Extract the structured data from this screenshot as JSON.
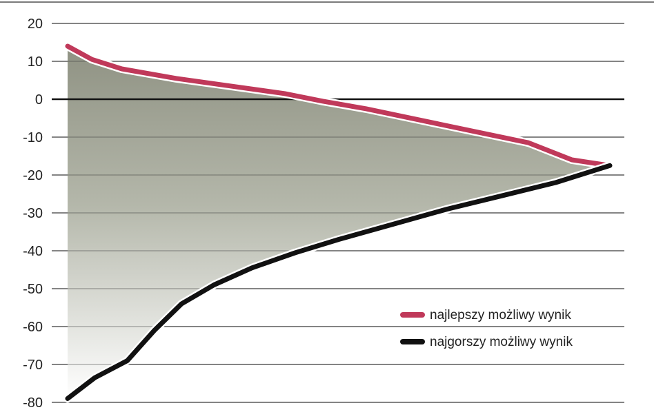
{
  "chart_data": {
    "type": "line",
    "title": "",
    "xlabel": "",
    "ylabel": "",
    "ylim": [
      -80,
      20
    ],
    "yticks": [
      20,
      10,
      0,
      -10,
      -20,
      -30,
      -40,
      -50,
      -60,
      -70,
      -80
    ],
    "ytick_labels": [
      "20",
      "10",
      "0",
      "-10",
      "-20",
      "-30",
      "-40",
      "-50",
      "-60",
      "-70",
      "-80"
    ],
    "x_axis_labels_shown": false,
    "grid": true,
    "shaded_area_between_series": true,
    "legend": {
      "placement": "bottom-right"
    },
    "series": [
      {
        "name": "najlepszy możliwy wynik",
        "color": "#c0395a",
        "x": [
          0,
          0.045,
          0.1,
          0.2,
          0.3,
          0.4,
          0.47,
          0.55,
          0.65,
          0.75,
          0.85,
          0.93,
          1.0
        ],
        "values": [
          14,
          10.5,
          8,
          5.5,
          3.5,
          1.5,
          -0.5,
          -2.5,
          -5.5,
          -8.5,
          -11.5,
          -16,
          -17.5
        ]
      },
      {
        "name": "najgorszy możliwy wynik",
        "color": "#111111",
        "x": [
          0,
          0.05,
          0.11,
          0.16,
          0.21,
          0.27,
          0.34,
          0.42,
          0.5,
          0.6,
          0.7,
          0.8,
          0.9,
          1.0
        ],
        "values": [
          -79,
          -73.5,
          -69,
          -61,
          -54,
          -49,
          -44.5,
          -40.5,
          -37,
          -33,
          -29,
          -25.5,
          -22,
          -17.5
        ]
      }
    ]
  }
}
